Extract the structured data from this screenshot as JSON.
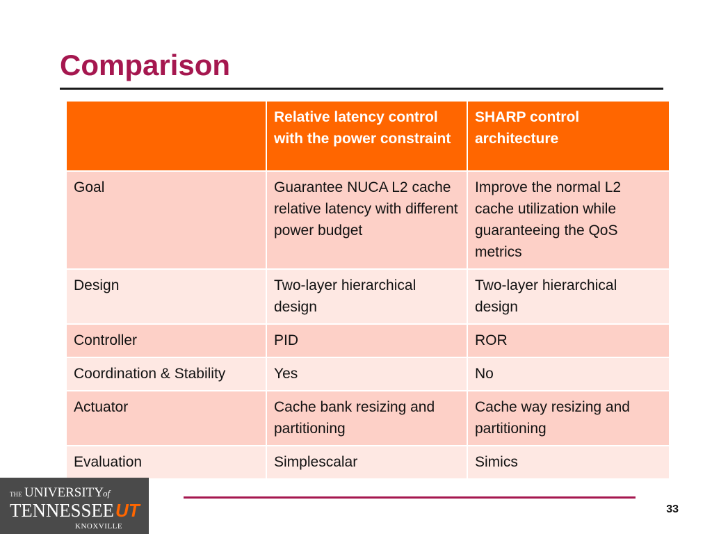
{
  "slide": {
    "title": "Comparison",
    "page_number": "33"
  },
  "table": {
    "headers": [
      "",
      "Relative latency control with the power constraint",
      "SHARP control architecture"
    ],
    "rows": [
      [
        "Goal",
        "Guarantee NUCA L2 cache relative latency with different power budget",
        "Improve the normal L2 cache utilization while guaranteeing the  QoS metrics"
      ],
      [
        "Design",
        "Two-layer hierarchical design",
        "Two-layer hierarchical design"
      ],
      [
        "Controller",
        "PID",
        "ROR"
      ],
      [
        "Coordination & Stability",
        "Yes",
        "No"
      ],
      [
        "Actuator",
        "Cache bank resizing and partitioning",
        "Cache way resizing and partitioning"
      ],
      [
        "Evaluation",
        "Simplescalar",
        "Simics"
      ]
    ]
  },
  "logo": {
    "line1_small": "THE",
    "line1_main": "UNIVERSITY",
    "line1_of": "of",
    "line2": "TENNESSEE",
    "mark": "UT",
    "line3": "KNOXVILLE",
    "mark_color": "#ff6600",
    "background_color": "#4a4a4a"
  },
  "colors": {
    "title": "#a5174f",
    "header_fill": "#ff6600",
    "row_fill_dark": "#fdd0c7",
    "row_fill_light": "#fee8e3",
    "footer_rule": "#a5174f"
  }
}
